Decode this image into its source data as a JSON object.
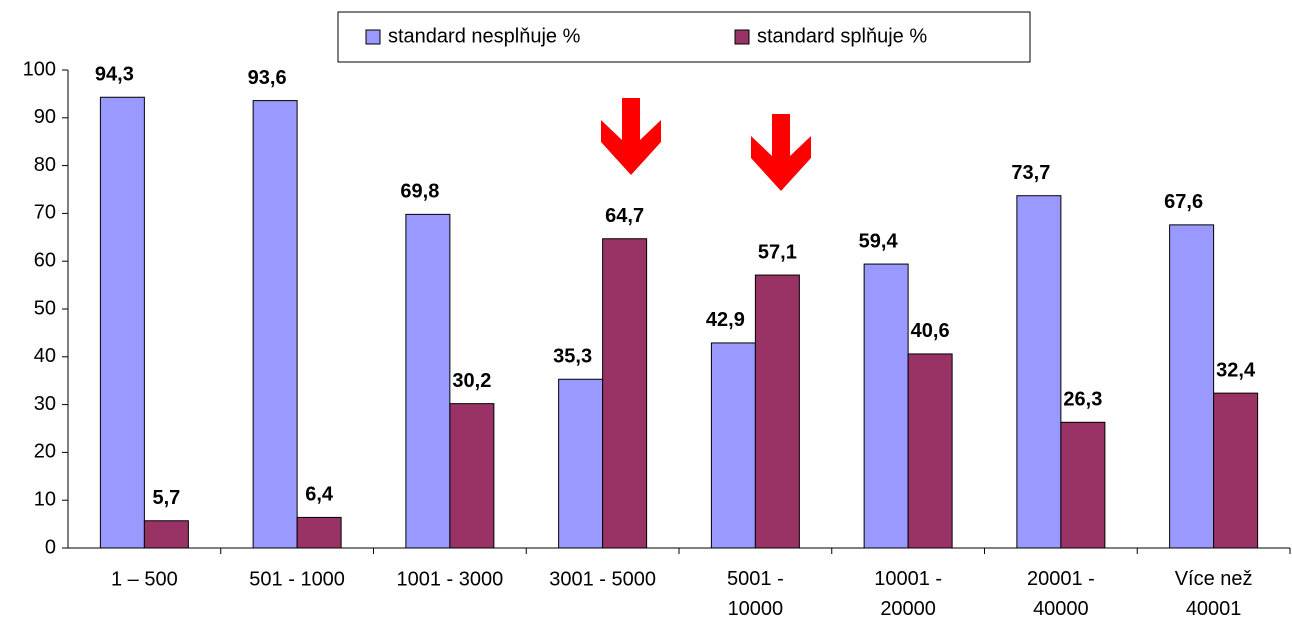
{
  "chart_data": {
    "type": "bar",
    "categories": [
      "1 – 500",
      "501 - 1000",
      "1001 - 3000",
      "3001 - 5000",
      "5001 -\n10000",
      "10001 -\n20000",
      "20001 -\n40000",
      "Více než\n40001"
    ],
    "series": [
      {
        "name": "standard nesplňuje %",
        "color": "#9999ff",
        "values": [
          94.3,
          93.6,
          69.8,
          35.3,
          42.9,
          59.4,
          73.7,
          67.6
        ],
        "value_labels": [
          "94,3",
          "93,6",
          "69,8",
          "35,3",
          "42,9",
          "59,4",
          "73,7",
          "67,6"
        ]
      },
      {
        "name": "standard splňuje %",
        "color": "#993366",
        "values": [
          5.7,
          6.4,
          30.2,
          64.7,
          57.1,
          40.6,
          26.3,
          32.4
        ],
        "value_labels": [
          "5,7",
          "6,4",
          "30,2",
          "64,7",
          "57,1",
          "40,6",
          "26,3",
          "32,4"
        ]
      }
    ],
    "ylim": [
      0,
      100
    ],
    "yticks": [
      0,
      10,
      20,
      30,
      40,
      50,
      60,
      70,
      80,
      90,
      100
    ],
    "legend": "top"
  }
}
